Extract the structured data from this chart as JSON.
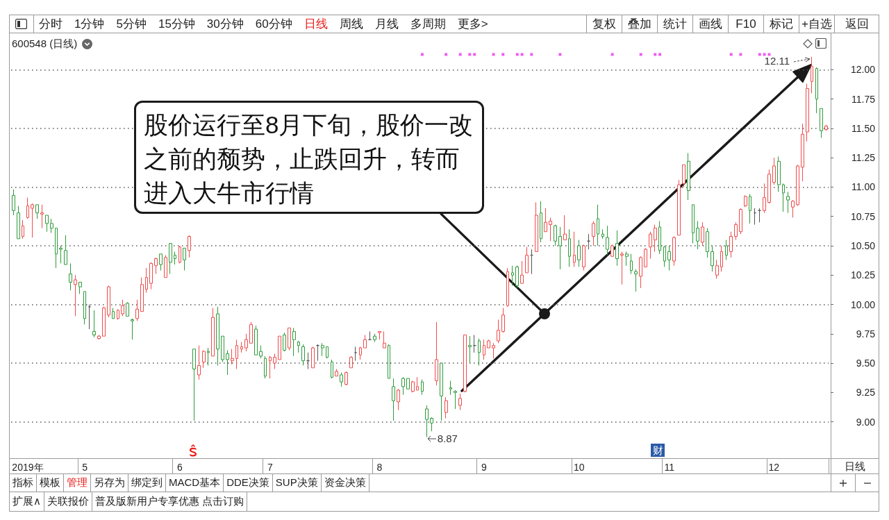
{
  "chart_data": {
    "type": "candlestick",
    "title": "600548 (日线)",
    "categories": [
      null,
      null,
      null,
      "2019年",
      null,
      null,
      null,
      null,
      null,
      null,
      null,
      null,
      null,
      null,
      null,
      "5",
      null,
      null,
      null,
      null,
      null,
      null,
      null,
      null,
      null,
      null,
      null,
      null,
      null,
      null,
      null,
      null,
      null,
      null,
      null,
      "6",
      null,
      null,
      null,
      null,
      null,
      null,
      null,
      null,
      null,
      null,
      null,
      null,
      null,
      null,
      null,
      null,
      null,
      null,
      "7",
      null,
      null,
      null,
      null,
      null,
      null,
      null,
      null,
      null,
      null,
      null,
      null,
      null,
      null,
      null,
      null,
      null,
      null,
      null,
      null,
      null,
      null,
      "8",
      null,
      null,
      null,
      null,
      null,
      null,
      null,
      null,
      null,
      null,
      null,
      null,
      null,
      null,
      null,
      null,
      null,
      null,
      null,
      null,
      null,
      "9",
      null,
      null,
      null,
      null,
      null,
      null,
      null,
      null,
      null,
      null,
      null,
      null,
      null,
      null,
      null,
      null,
      null,
      null,
      null,
      "10",
      null,
      null,
      null,
      null,
      null,
      null,
      null,
      null,
      null,
      null,
      null,
      null,
      null,
      null,
      null,
      null,
      null,
      null,
      "11",
      null,
      null,
      null,
      null,
      null,
      null,
      null,
      null,
      null,
      null,
      null,
      null,
      null,
      null,
      null,
      null,
      null,
      null,
      null,
      null,
      null,
      "12",
      null,
      null,
      null,
      null,
      null,
      null,
      null,
      null,
      null,
      null,
      null
    ],
    "ohlc": [
      [
        10.93,
        10.98,
        10.76,
        10.8
      ],
      [
        10.78,
        10.84,
        10.56,
        10.56
      ],
      [
        10.58,
        10.72,
        10.56,
        10.67
      ],
      [
        10.74,
        10.91,
        10.73,
        10.84
      ],
      [
        10.82,
        10.86,
        10.57,
        10.85
      ],
      [
        10.85,
        10.85,
        10.73,
        10.78
      ],
      [
        10.77,
        10.85,
        10.65,
        10.78
      ],
      [
        10.76,
        10.76,
        10.62,
        10.69
      ],
      [
        10.69,
        10.73,
        10.61,
        10.65
      ],
      [
        10.65,
        10.65,
        10.31,
        10.43
      ],
      [
        10.48,
        10.5,
        10.35,
        10.47
      ],
      [
        10.46,
        10.59,
        10.34,
        10.34
      ],
      [
        10.26,
        10.35,
        10.12,
        10.19
      ],
      [
        10.17,
        10.25,
        9.9,
        10.21
      ],
      [
        10.19,
        10.19,
        10.09,
        10.15
      ],
      [
        10.11,
        10.11,
        9.83,
        9.88
      ],
      [
        9.98,
        10.0,
        9.79,
        9.98
      ],
      [
        9.77,
        9.95,
        9.72,
        9.74
      ],
      [
        9.71,
        9.74,
        9.7,
        9.73
      ],
      [
        9.73,
        9.98,
        9.73,
        9.97
      ],
      [
        9.91,
        10.16,
        9.89,
        10.15
      ],
      [
        9.94,
        9.97,
        9.88,
        9.88
      ],
      [
        9.88,
        9.96,
        9.87,
        9.95
      ],
      [
        9.92,
        10.04,
        9.9,
        9.99
      ],
      [
        10.01,
        10.02,
        9.9,
        9.9
      ],
      [
        9.87,
        9.88,
        9.7,
        9.86
      ],
      [
        9.88,
        10.04,
        9.86,
        9.96
      ],
      [
        9.94,
        10.23,
        9.94,
        10.17
      ],
      [
        10.13,
        10.31,
        10.1,
        10.23
      ],
      [
        10.18,
        10.36,
        10.13,
        10.35
      ],
      [
        10.33,
        10.4,
        10.26,
        10.39
      ],
      [
        10.43,
        10.43,
        10.29,
        10.34
      ],
      [
        10.23,
        10.42,
        10.23,
        10.4
      ],
      [
        10.52,
        10.52,
        10.26,
        10.36
      ],
      [
        10.42,
        10.45,
        10.34,
        10.39
      ],
      [
        10.36,
        10.5,
        10.35,
        10.49
      ],
      [
        10.48,
        10.48,
        10.29,
        10.38
      ],
      [
        10.46,
        10.59,
        10.4,
        10.58
      ],
      [
        9.62,
        9.62,
        9.01,
        9.45
      ],
      [
        9.4,
        9.65,
        9.36,
        9.48
      ],
      [
        9.51,
        9.61,
        9.46,
        9.6
      ],
      [
        9.6,
        9.63,
        9.48,
        9.59
      ],
      [
        9.56,
        9.97,
        9.56,
        9.89
      ],
      [
        9.92,
        9.98,
        9.48,
        9.62
      ],
      [
        9.73,
        9.73,
        9.51,
        9.53
      ],
      [
        9.58,
        9.61,
        9.4,
        9.53
      ],
      [
        9.52,
        9.62,
        9.49,
        9.54
      ],
      [
        9.54,
        9.7,
        9.45,
        9.65
      ],
      [
        9.62,
        9.68,
        9.59,
        9.64
      ],
      [
        9.63,
        9.75,
        9.6,
        9.7
      ],
      [
        9.67,
        9.85,
        9.67,
        9.83
      ],
      [
        9.79,
        9.82,
        9.57,
        9.57
      ],
      [
        9.6,
        9.65,
        9.54,
        9.56
      ],
      [
        9.54,
        9.56,
        9.37,
        9.39
      ],
      [
        9.52,
        9.56,
        9.37,
        9.55
      ],
      [
        9.5,
        9.58,
        9.45,
        9.55
      ],
      [
        9.53,
        9.73,
        9.53,
        9.73
      ],
      [
        9.74,
        9.76,
        9.6,
        9.61
      ],
      [
        9.63,
        9.8,
        9.61,
        9.8
      ],
      [
        9.77,
        9.8,
        9.56,
        9.7
      ],
      [
        9.68,
        9.69,
        9.59,
        9.65
      ],
      [
        9.64,
        9.66,
        9.48,
        9.52
      ],
      [
        9.52,
        9.59,
        9.45,
        9.52
      ],
      [
        9.46,
        9.64,
        9.46,
        9.63
      ],
      [
        9.65,
        9.66,
        9.52,
        9.65
      ],
      [
        9.65,
        9.67,
        9.56,
        9.63
      ],
      [
        9.64,
        9.64,
        9.54,
        9.55
      ],
      [
        9.51,
        9.53,
        9.37,
        9.38
      ],
      [
        9.39,
        9.45,
        9.39,
        9.43
      ],
      [
        9.4,
        9.42,
        9.3,
        9.34
      ],
      [
        9.32,
        9.43,
        9.31,
        9.42
      ],
      [
        9.46,
        9.56,
        9.46,
        9.55
      ],
      [
        9.59,
        9.64,
        9.52,
        9.59
      ],
      [
        9.57,
        9.64,
        9.53,
        9.63
      ],
      [
        9.63,
        9.74,
        9.63,
        9.7
      ],
      [
        9.7,
        9.77,
        9.7,
        9.7
      ],
      [
        9.73,
        9.75,
        9.68,
        9.7
      ],
      [
        9.76,
        9.77,
        9.7,
        9.77
      ],
      [
        9.63,
        9.77,
        9.63,
        9.67
      ],
      [
        9.65,
        9.66,
        9.37,
        9.37
      ],
      [
        9.3,
        9.37,
        9.01,
        9.18
      ],
      [
        9.17,
        9.28,
        9.1,
        9.27
      ],
      [
        9.37,
        9.38,
        9.23,
        9.3
      ],
      [
        9.37,
        9.37,
        9.28,
        9.28
      ],
      [
        9.26,
        9.35,
        9.25,
        9.34
      ],
      [
        9.27,
        9.38,
        9.27,
        9.3
      ],
      [
        9.34,
        9.36,
        9.23,
        9.26
      ],
      [
        9.11,
        9.14,
        8.87,
        9.02
      ],
      [
        9.03,
        9.04,
        8.92,
        8.99
      ],
      [
        9.35,
        9.85,
        9.31,
        9.53
      ],
      [
        9.5,
        9.5,
        9.01,
        9.22
      ],
      [
        9.08,
        9.21,
        9.03,
        9.18
      ],
      [
        9.29,
        9.35,
        9.23,
        9.28
      ],
      [
        9.26,
        9.27,
        9.11,
        9.25
      ],
      [
        9.14,
        9.24,
        9.1,
        9.2
      ],
      [
        9.26,
        9.74,
        9.25,
        9.74
      ],
      [
        9.65,
        9.73,
        9.5,
        9.64
      ],
      [
        9.65,
        9.74,
        9.59,
        9.65
      ],
      [
        9.69,
        9.71,
        9.48,
        9.59
      ],
      [
        9.57,
        9.7,
        9.53,
        9.65
      ],
      [
        9.63,
        9.7,
        9.63,
        9.69
      ],
      [
        9.63,
        9.67,
        9.54,
        9.65
      ],
      [
        9.69,
        9.87,
        9.67,
        9.78
      ],
      [
        9.77,
        9.97,
        9.76,
        9.91
      ],
      [
        9.99,
        10.31,
        9.98,
        10.28
      ],
      [
        10.27,
        10.33,
        10.16,
        10.25
      ],
      [
        10.32,
        10.33,
        10.14,
        10.16
      ],
      [
        10.18,
        10.37,
        10.18,
        10.25
      ],
      [
        10.27,
        10.49,
        10.27,
        10.42
      ],
      [
        10.42,
        10.47,
        10.26,
        10.42
      ],
      [
        10.45,
        10.87,
        10.45,
        10.76
      ],
      [
        10.78,
        10.88,
        10.53,
        10.56
      ],
      [
        10.62,
        10.82,
        10.62,
        10.7
      ],
      [
        10.68,
        10.74,
        10.54,
        10.71
      ],
      [
        10.67,
        10.68,
        10.5,
        10.54
      ],
      [
        10.58,
        10.66,
        10.3,
        10.5
      ],
      [
        10.55,
        10.76,
        10.55,
        10.6
      ],
      [
        10.56,
        10.64,
        10.32,
        10.41
      ],
      [
        10.36,
        10.62,
        10.32,
        10.42
      ],
      [
        10.5,
        10.55,
        10.32,
        10.38
      ],
      [
        10.32,
        10.51,
        10.29,
        10.5
      ],
      [
        10.54,
        10.6,
        10.47,
        10.54
      ],
      [
        10.58,
        10.71,
        10.5,
        10.69
      ],
      [
        10.73,
        10.85,
        10.5,
        10.6
      ],
      [
        10.6,
        10.64,
        10.56,
        10.58
      ],
      [
        10.57,
        10.67,
        10.42,
        10.47
      ],
      [
        10.41,
        10.51,
        10.41,
        10.5
      ],
      [
        10.52,
        10.63,
        10.33,
        10.39
      ],
      [
        10.42,
        10.45,
        10.17,
        10.43
      ],
      [
        10.43,
        10.45,
        10.33,
        10.41
      ],
      [
        10.37,
        10.43,
        10.26,
        10.29
      ],
      [
        10.28,
        10.3,
        10.11,
        10.26
      ],
      [
        10.24,
        10.41,
        10.14,
        10.4
      ],
      [
        10.32,
        10.48,
        10.32,
        10.47
      ],
      [
        10.49,
        10.62,
        10.39,
        10.6
      ],
      [
        10.55,
        10.68,
        10.45,
        10.65
      ],
      [
        10.66,
        10.71,
        10.43,
        10.46
      ],
      [
        10.49,
        10.5,
        10.32,
        10.37
      ],
      [
        10.45,
        10.5,
        10.29,
        10.38
      ],
      [
        10.37,
        10.58,
        10.33,
        10.57
      ],
      [
        10.59,
        11.06,
        10.59,
        11.02
      ],
      [
        11.03,
        11.19,
        11.0,
        11.19
      ],
      [
        11.22,
        11.29,
        10.89,
        10.97
      ],
      [
        10.85,
        10.85,
        10.52,
        10.61
      ],
      [
        10.65,
        10.71,
        10.47,
        10.54
      ],
      [
        10.53,
        10.7,
        10.5,
        10.66
      ],
      [
        10.62,
        10.65,
        10.4,
        10.45
      ],
      [
        10.45,
        10.5,
        10.28,
        10.33
      ],
      [
        10.25,
        10.38,
        10.22,
        10.33
      ],
      [
        10.32,
        10.5,
        10.28,
        10.45
      ],
      [
        10.5,
        10.55,
        10.38,
        10.42
      ],
      [
        10.45,
        10.62,
        10.4,
        10.58
      ],
      [
        10.58,
        10.7,
        10.55,
        10.68
      ],
      [
        10.62,
        10.82,
        10.6,
        10.81
      ],
      [
        10.84,
        10.93,
        10.83,
        10.92
      ],
      [
        10.92,
        10.94,
        10.69,
        10.8
      ],
      [
        10.78,
        10.82,
        10.68,
        10.78
      ],
      [
        10.8,
        10.82,
        10.7,
        10.8
      ],
      [
        10.8,
        11.03,
        10.78,
        10.91
      ],
      [
        10.87,
        11.15,
        10.86,
        11.11
      ],
      [
        11.04,
        11.25,
        11.02,
        11.18
      ],
      [
        11.22,
        11.26,
        10.96,
        11.02
      ],
      [
        11.02,
        11.03,
        10.79,
        10.95
      ],
      [
        10.92,
        10.96,
        10.78,
        10.89
      ],
      [
        10.83,
        10.89,
        10.74,
        10.88
      ],
      [
        10.85,
        11.19,
        10.84,
        11.18
      ],
      [
        11.17,
        11.54,
        11.05,
        11.45
      ],
      [
        11.47,
        11.88,
        11.39,
        11.84
      ],
      [
        11.9,
        12.11,
        11.8,
        12.03
      ],
      [
        12.01,
        12.02,
        11.63,
        11.75
      ],
      [
        11.67,
        11.67,
        11.42,
        11.48
      ],
      [
        11.49,
        11.53,
        11.48,
        11.52
      ]
    ],
    "colors": [
      "#2d9b3a",
      "#2d9b3a",
      "#f04c4c",
      "#f04c4c",
      "#f04c4c",
      "#2d9b3a",
      "#f04c4c",
      "#2d9b3a",
      "#2d9b3a",
      "#2d9b3a",
      "#2d9b3a",
      "#2d9b3a",
      "#2d9b3a",
      "#f04c4c",
      "#2d9b3a",
      "#2d9b3a",
      "#555555",
      "#2d9b3a",
      "#f04c4c",
      "#f04c4c",
      "#f04c4c",
      "#2d9b3a",
      "#f04c4c",
      "#f04c4c",
      "#2d9b3a",
      "#2d9b3a",
      "#f04c4c",
      "#f04c4c",
      "#f04c4c",
      "#f04c4c",
      "#f04c4c",
      "#2d9b3a",
      "#f04c4c",
      "#2d9b3a",
      "#2d9b3a",
      "#f04c4c",
      "#2d9b3a",
      "#f04c4c",
      "#2d9b3a",
      "#f04c4c",
      "#f04c4c",
      "#2d9b3a",
      "#f04c4c",
      "#2d9b3a",
      "#2d9b3a",
      "#2d9b3a",
      "#f04c4c",
      "#f04c4c",
      "#f04c4c",
      "#f04c4c",
      "#f04c4c",
      "#2d9b3a",
      "#2d9b3a",
      "#2d9b3a",
      "#f04c4c",
      "#f04c4c",
      "#f04c4c",
      "#2d9b3a",
      "#f04c4c",
      "#2d9b3a",
      "#2d9b3a",
      "#2d9b3a",
      "#555555",
      "#f04c4c",
      "#555555",
      "#2d9b3a",
      "#2d9b3a",
      "#2d9b3a",
      "#f04c4c",
      "#2d9b3a",
      "#f04c4c",
      "#f04c4c",
      "#555555",
      "#f04c4c",
      "#f04c4c",
      "#555555",
      "#2d9b3a",
      "#f04c4c",
      "#f04c4c",
      "#2d9b3a",
      "#2d9b3a",
      "#f04c4c",
      "#2d9b3a",
      "#2d9b3a",
      "#f04c4c",
      "#f04c4c",
      "#2d9b3a",
      "#2d9b3a",
      "#2d9b3a",
      "#f04c4c",
      "#2d9b3a",
      "#f04c4c",
      "#2d9b3a",
      "#2d9b3a",
      "#f04c4c",
      "#f04c4c",
      "#2d9b3a",
      "#555555",
      "#2d9b3a",
      "#f04c4c",
      "#f04c4c",
      "#f04c4c",
      "#f04c4c",
      "#f04c4c",
      "#f04c4c",
      "#2d9b3a",
      "#2d9b3a",
      "#f04c4c",
      "#f04c4c",
      "#555555",
      "#f04c4c",
      "#2d9b3a",
      "#f04c4c",
      "#f04c4c",
      "#2d9b3a",
      "#2d9b3a",
      "#f04c4c",
      "#2d9b3a",
      "#f04c4c",
      "#2d9b3a",
      "#f04c4c",
      "#555555",
      "#f04c4c",
      "#2d9b3a",
      "#2d9b3a",
      "#2d9b3a",
      "#f04c4c",
      "#2d9b3a",
      "#f04c4c",
      "#2d9b3a",
      "#2d9b3a",
      "#2d9b3a",
      "#f04c4c",
      "#f04c4c",
      "#f04c4c",
      "#f04c4c",
      "#2d9b3a",
      "#2d9b3a",
      "#2d9b3a",
      "#f04c4c",
      "#f04c4c",
      "#f04c4c",
      "#2d9b3a",
      "#2d9b3a",
      "#2d9b3a",
      "#f04c4c",
      "#2d9b3a",
      "#2d9b3a",
      "#f04c4c",
      "#f04c4c",
      "#2d9b3a",
      "#f04c4c",
      "#f04c4c",
      "#f04c4c",
      "#f04c4c",
      "#2d9b3a",
      "#555555",
      "#555555",
      "#f04c4c",
      "#f04c4c",
      "#f04c4c",
      "#2d9b3a",
      "#2d9b3a",
      "#2d9b3a",
      "#f04c4c",
      "#f04c4c",
      "#f04c4c",
      "#f04c4c",
      "#f04c4c",
      "#2d9b3a",
      "#2d9b3a",
      "#f04c4c"
    ],
    "series": [
      {
        "type": "scatter",
        "color": "#ee33ee",
        "values": [
          null,
          null,
          null,
          null,
          null,
          null,
          null,
          null,
          null,
          null,
          null,
          null,
          null,
          null,
          null,
          null,
          null,
          null,
          null,
          null,
          null,
          null,
          null,
          null,
          null,
          null,
          null,
          null,
          null,
          null,
          null,
          null,
          null,
          null,
          null,
          null,
          null,
          null,
          null,
          null,
          null,
          null,
          null,
          null,
          null,
          null,
          null,
          null,
          null,
          null,
          null,
          null,
          null,
          null,
          null,
          null,
          null,
          null,
          null,
          null,
          null,
          null,
          null,
          null,
          null,
          null,
          null,
          null,
          null,
          null,
          null,
          null,
          null,
          null,
          null,
          null,
          null,
          null,
          null,
          null,
          null,
          null,
          null,
          null,
          null,
          null,
          12.13,
          null,
          null,
          null,
          null,
          12.13,
          null,
          null,
          12.13,
          null,
          12.13,
          12.13,
          null,
          null,
          null,
          12.13,
          null,
          12.13,
          null,
          null,
          12.13,
          12.13,
          null,
          12.13,
          null,
          null,
          null,
          null,
          null,
          12.13,
          null,
          null,
          null,
          null,
          null,
          null,
          null,
          null,
          null,
          null,
          12.13,
          null,
          null,
          null,
          null,
          null,
          12.13,
          null,
          null,
          12.13,
          12.13,
          null,
          null,
          null,
          null,
          null,
          null,
          null,
          null,
          null,
          null,
          null,
          null,
          null,
          null,
          12.13,
          null,
          12.13,
          null,
          null,
          null,
          12.13,
          12.13,
          12.13,
          null,
          null,
          null,
          null,
          null,
          null,
          null,
          null,
          null,
          null,
          null,
          null
        ]
      }
    ],
    "ylim": [
      8.69,
      12.31
    ],
    "yticks": [
      {
        "value": 9,
        "label": "9.00"
      },
      {
        "value": 9.25,
        "label": "9.25"
      },
      {
        "value": 9.5,
        "label": "9.50"
      },
      {
        "value": 9.75,
        "label": "9.75"
      },
      {
        "value": 10,
        "label": "10.00"
      },
      {
        "value": 10.25,
        "label": "10.25"
      },
      {
        "value": 10.5,
        "label": "10.50"
      },
      {
        "value": 10.75,
        "label": "10.75"
      },
      {
        "value": 11,
        "label": "11.00"
      },
      {
        "value": 11.25,
        "label": "11.25"
      },
      {
        "value": 11.5,
        "label": "11.50"
      },
      {
        "value": 11.75,
        "label": "11.75"
      },
      {
        "value": 12,
        "label": "12.00"
      }
    ],
    "grid": "y",
    "marker": "square",
    "annotations": [
      "分时",
      "1分钟",
      "5分钟",
      "15分钟",
      "30分钟",
      "60分钟",
      "日线",
      "周线",
      "月线",
      "多周期",
      "更多>",
      "复权",
      "叠加",
      "统计",
      "画线",
      "F10",
      "标记",
      "+自选",
      "返回",
      "股价运行至8月下旬，股价一改之前的颓势，止跌回升，转而进入大牛市行情",
      "财",
      "日线",
      "指标",
      "模板",
      "管理",
      "另存为",
      "绑定到",
      "MACD基本",
      "DDE决策",
      "SUP决策",
      "资金决策",
      "扩展∧",
      "关联报价",
      "普及版新用户专享优惠 点击订购",
      "12.11",
      "8.87"
    ]
  }
}
